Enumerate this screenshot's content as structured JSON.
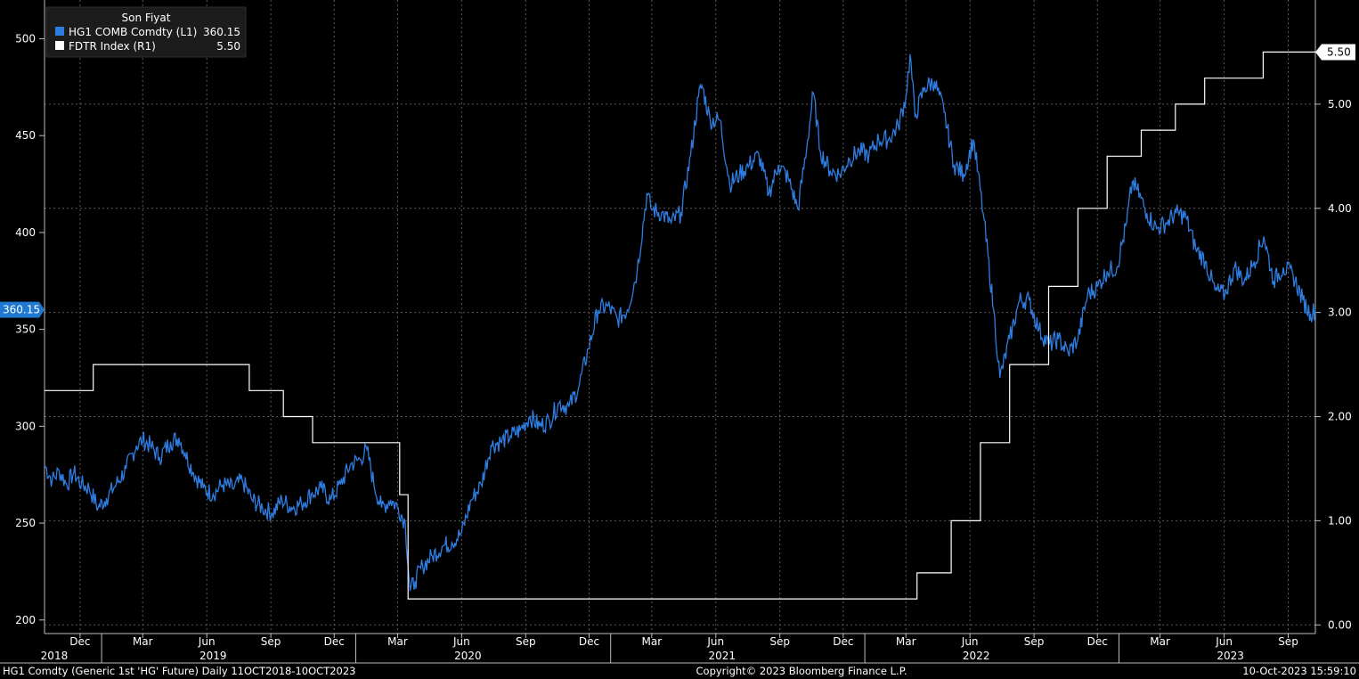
{
  "legend": {
    "title": "Son Fiyat",
    "entries": [
      {
        "label": "HG1 COMB Comdty  (L1)",
        "value": "360.15",
        "color": "#2f7de1"
      },
      {
        "label": "FDTR Index  (R1)",
        "value": "5.50",
        "color": "#ffffff"
      }
    ]
  },
  "last_value_badges": {
    "left": {
      "text": "360.15",
      "color": "#1f78d1"
    },
    "right": {
      "text": "5.50",
      "color": "#ffffff"
    }
  },
  "footer": {
    "left": "HG1 Comdty (Generic 1st 'HG' Future)  Daily 11OCT2018-10OCT2023",
    "center": "Copyright© 2023 Bloomberg Finance L.P.",
    "right": "10-Oct-2023 15:59:10"
  },
  "chart_data": {
    "type": "line",
    "x_start": "2018-10-11",
    "x_end": "2023-10-10",
    "month_ticks": [
      {
        "label": "Dec",
        "date": "2018-12-01"
      },
      {
        "label": "Mar",
        "date": "2019-03-01"
      },
      {
        "label": "Jun",
        "date": "2019-06-01"
      },
      {
        "label": "Sep",
        "date": "2019-09-01"
      },
      {
        "label": "Dec",
        "date": "2019-12-01"
      },
      {
        "label": "Mar",
        "date": "2020-03-01"
      },
      {
        "label": "Jun",
        "date": "2020-06-01"
      },
      {
        "label": "Sep",
        "date": "2020-09-01"
      },
      {
        "label": "Dec",
        "date": "2020-12-01"
      },
      {
        "label": "Mar",
        "date": "2021-03-01"
      },
      {
        "label": "Jun",
        "date": "2021-06-01"
      },
      {
        "label": "Sep",
        "date": "2021-09-01"
      },
      {
        "label": "Dec",
        "date": "2021-12-01"
      },
      {
        "label": "Mar",
        "date": "2022-03-01"
      },
      {
        "label": "Jun",
        "date": "2022-06-01"
      },
      {
        "label": "Sep",
        "date": "2022-09-01"
      },
      {
        "label": "Dec",
        "date": "2022-12-01"
      },
      {
        "label": "Mar",
        "date": "2023-03-01"
      },
      {
        "label": "Jun",
        "date": "2023-06-01"
      },
      {
        "label": "Sep",
        "date": "2023-09-01"
      }
    ],
    "year_labels": [
      {
        "label": "2018",
        "date": "2018-10-25"
      },
      {
        "label": "2019",
        "date": "2019-06-10"
      },
      {
        "label": "2020",
        "date": "2020-06-10"
      },
      {
        "label": "2021",
        "date": "2021-06-10"
      },
      {
        "label": "2022",
        "date": "2022-06-10"
      },
      {
        "label": "2023",
        "date": "2023-06-10"
      }
    ],
    "year_dividers": [
      "2019-01-01",
      "2020-01-01",
      "2021-01-01",
      "2022-01-01",
      "2023-01-01"
    ],
    "left_axis": {
      "min": 193,
      "max": 520,
      "ticks": [
        200,
        250,
        300,
        350,
        400,
        450,
        500
      ]
    },
    "right_axis": {
      "min": -0.083,
      "max": 6.0,
      "ticks": [
        "0.00",
        "1.00",
        "2.00",
        "3.00",
        "4.00",
        "5.00"
      ]
    },
    "grid": true,
    "legend_position": "top-left",
    "series": [
      {
        "name": "HG1 COMB Comdty  (L1)",
        "axis": "left",
        "color": "#2f7de1",
        "points": [
          [
            "2018-10-11",
            280
          ],
          [
            "2018-10-22",
            272
          ],
          [
            "2018-11-01",
            277
          ],
          [
            "2018-11-12",
            270
          ],
          [
            "2018-11-22",
            276
          ],
          [
            "2018-12-03",
            270
          ],
          [
            "2018-12-14",
            268
          ],
          [
            "2018-12-27",
            258
          ],
          [
            "2019-01-08",
            263
          ],
          [
            "2019-01-22",
            270
          ],
          [
            "2019-02-05",
            278
          ],
          [
            "2019-02-20",
            290
          ],
          [
            "2019-03-01",
            293
          ],
          [
            "2019-03-12",
            290
          ],
          [
            "2019-03-25",
            284
          ],
          [
            "2019-04-10",
            292
          ],
          [
            "2019-04-22",
            294
          ],
          [
            "2019-05-01",
            286
          ],
          [
            "2019-05-13",
            276
          ],
          [
            "2019-05-27",
            268
          ],
          [
            "2019-06-10",
            265
          ],
          [
            "2019-06-24",
            270
          ],
          [
            "2019-07-08",
            268
          ],
          [
            "2019-07-22",
            272
          ],
          [
            "2019-08-05",
            262
          ],
          [
            "2019-08-20",
            258
          ],
          [
            "2019-09-03",
            255
          ],
          [
            "2019-09-17",
            262
          ],
          [
            "2019-10-01",
            258
          ],
          [
            "2019-10-15",
            260
          ],
          [
            "2019-10-29",
            265
          ],
          [
            "2019-11-12",
            268
          ],
          [
            "2019-11-26",
            262
          ],
          [
            "2019-12-10",
            270
          ],
          [
            "2019-12-24",
            280
          ],
          [
            "2020-01-07",
            283
          ],
          [
            "2020-01-17",
            288
          ],
          [
            "2020-01-27",
            270
          ],
          [
            "2020-02-07",
            258
          ],
          [
            "2020-02-20",
            262
          ],
          [
            "2020-03-02",
            258
          ],
          [
            "2020-03-12",
            250
          ],
          [
            "2020-03-19",
            215
          ],
          [
            "2020-03-26",
            220
          ],
          [
            "2020-04-06",
            228
          ],
          [
            "2020-04-20",
            233
          ],
          [
            "2020-05-04",
            238
          ],
          [
            "2020-05-18",
            240
          ],
          [
            "2020-06-01",
            245
          ],
          [
            "2020-06-15",
            262
          ],
          [
            "2020-06-29",
            270
          ],
          [
            "2020-07-13",
            290
          ],
          [
            "2020-07-27",
            292
          ],
          [
            "2020-08-10",
            295
          ],
          [
            "2020-08-24",
            298
          ],
          [
            "2020-09-07",
            305
          ],
          [
            "2020-09-21",
            300
          ],
          [
            "2020-10-05",
            303
          ],
          [
            "2020-10-19",
            312
          ],
          [
            "2020-11-02",
            310
          ],
          [
            "2020-11-16",
            320
          ],
          [
            "2020-11-30",
            340
          ],
          [
            "2020-12-14",
            360
          ],
          [
            "2020-12-28",
            362
          ],
          [
            "2021-01-11",
            355
          ],
          [
            "2021-01-25",
            360
          ],
          [
            "2021-02-08",
            380
          ],
          [
            "2021-02-22",
            420
          ],
          [
            "2021-03-01",
            412
          ],
          [
            "2021-03-15",
            410
          ],
          [
            "2021-03-29",
            405
          ],
          [
            "2021-04-12",
            410
          ],
          [
            "2021-04-26",
            440
          ],
          [
            "2021-05-07",
            470
          ],
          [
            "2021-05-12",
            476
          ],
          [
            "2021-05-24",
            458
          ],
          [
            "2021-06-07",
            458
          ],
          [
            "2021-06-21",
            425
          ],
          [
            "2021-07-05",
            430
          ],
          [
            "2021-07-19",
            435
          ],
          [
            "2021-08-02",
            440
          ],
          [
            "2021-08-16",
            420
          ],
          [
            "2021-08-30",
            435
          ],
          [
            "2021-09-13",
            428
          ],
          [
            "2021-09-27",
            412
          ],
          [
            "2021-10-11",
            448
          ],
          [
            "2021-10-19",
            472
          ],
          [
            "2021-10-29",
            442
          ],
          [
            "2021-11-12",
            432
          ],
          [
            "2021-11-26",
            430
          ],
          [
            "2021-12-10",
            438
          ],
          [
            "2021-12-24",
            442
          ],
          [
            "2022-01-07",
            440
          ],
          [
            "2022-01-21",
            448
          ],
          [
            "2022-02-04",
            448
          ],
          [
            "2022-02-18",
            455
          ],
          [
            "2022-03-01",
            470
          ],
          [
            "2022-03-07",
            492
          ],
          [
            "2022-03-14",
            460
          ],
          [
            "2022-03-28",
            475
          ],
          [
            "2022-04-11",
            478
          ],
          [
            "2022-04-25",
            462
          ],
          [
            "2022-05-09",
            435
          ],
          [
            "2022-05-23",
            430
          ],
          [
            "2022-06-06",
            448
          ],
          [
            "2022-06-20",
            410
          ],
          [
            "2022-07-05",
            360
          ],
          [
            "2022-07-14",
            325
          ],
          [
            "2022-07-28",
            345
          ],
          [
            "2022-08-11",
            365
          ],
          [
            "2022-08-25",
            365
          ],
          [
            "2022-09-08",
            350
          ],
          [
            "2022-09-22",
            342
          ],
          [
            "2022-10-06",
            345
          ],
          [
            "2022-10-20",
            338
          ],
          [
            "2022-11-03",
            345
          ],
          [
            "2022-11-17",
            368
          ],
          [
            "2022-12-01",
            372
          ],
          [
            "2022-12-15",
            380
          ],
          [
            "2022-12-29",
            382
          ],
          [
            "2023-01-12",
            405
          ],
          [
            "2023-01-20",
            426
          ],
          [
            "2023-01-27",
            422
          ],
          [
            "2023-02-10",
            410
          ],
          [
            "2023-02-24",
            402
          ],
          [
            "2023-03-10",
            405
          ],
          [
            "2023-03-24",
            410
          ],
          [
            "2023-04-07",
            408
          ],
          [
            "2023-04-21",
            392
          ],
          [
            "2023-05-05",
            385
          ],
          [
            "2023-05-19",
            370
          ],
          [
            "2023-06-02",
            368
          ],
          [
            "2023-06-16",
            382
          ],
          [
            "2023-06-30",
            375
          ],
          [
            "2023-07-14",
            385
          ],
          [
            "2023-07-28",
            398
          ],
          [
            "2023-08-11",
            375
          ],
          [
            "2023-08-25",
            382
          ],
          [
            "2023-09-08",
            378
          ],
          [
            "2023-09-22",
            365
          ],
          [
            "2023-10-03",
            358
          ],
          [
            "2023-10-10",
            360.15
          ]
        ]
      },
      {
        "name": "FDTR Index  (R1)",
        "axis": "right",
        "color": "#ffffff",
        "step": true,
        "points": [
          [
            "2018-10-11",
            2.25
          ],
          [
            "2018-12-20",
            2.5
          ],
          [
            "2019-08-01",
            2.25
          ],
          [
            "2019-09-19",
            2.0
          ],
          [
            "2019-10-31",
            1.75
          ],
          [
            "2020-03-04",
            1.25
          ],
          [
            "2020-03-16",
            0.25
          ],
          [
            "2022-03-17",
            0.5
          ],
          [
            "2022-05-05",
            1.0
          ],
          [
            "2022-06-16",
            1.75
          ],
          [
            "2022-07-28",
            2.5
          ],
          [
            "2022-09-22",
            3.25
          ],
          [
            "2022-11-03",
            4.0
          ],
          [
            "2022-12-15",
            4.5
          ],
          [
            "2023-02-02",
            4.75
          ],
          [
            "2023-03-23",
            5.0
          ],
          [
            "2023-05-04",
            5.25
          ],
          [
            "2023-07-27",
            5.5
          ],
          [
            "2023-10-10",
            5.5
          ]
        ]
      }
    ]
  }
}
